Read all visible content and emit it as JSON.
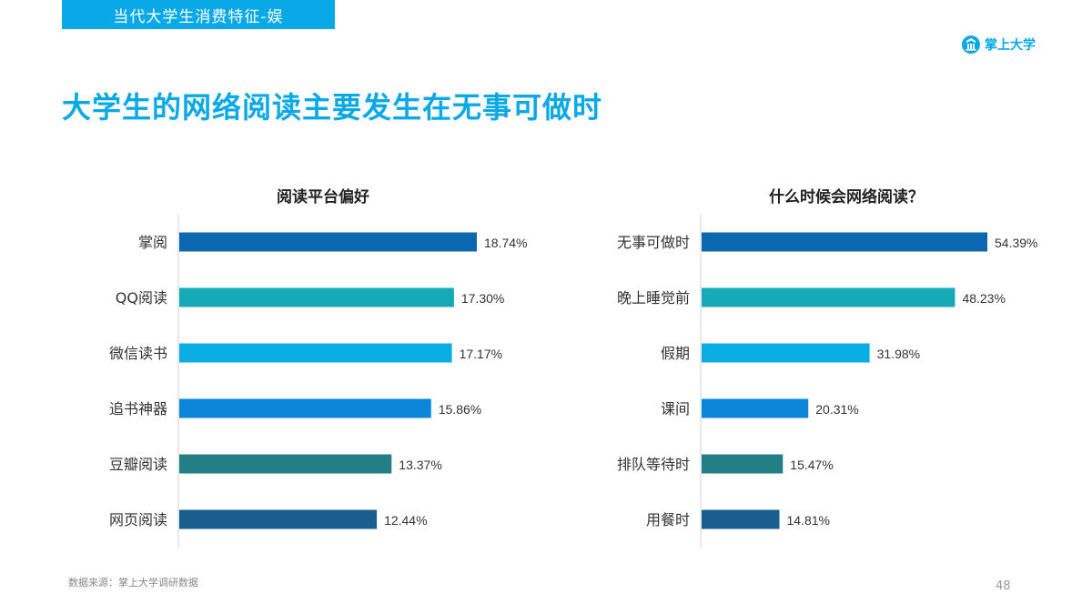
{
  "header": {
    "section_tag": "当代大学生消费特征-娱",
    "brand": "掌上大学",
    "title": "大学生的网络阅读主要发生在无事可做时"
  },
  "colors": {
    "accent": "#09a8e6",
    "bar_colors": [
      "#0a67b0",
      "#16a9b8",
      "#0aaee3",
      "#0b86db",
      "#227f85",
      "#1a5e8f"
    ]
  },
  "chart_data": [
    {
      "type": "bar",
      "orientation": "horizontal",
      "title": "阅读平台偏好",
      "categories": [
        "掌阅",
        "QQ阅读",
        "微信读书",
        "追书神器",
        "豆瓣阅读",
        "网页阅读"
      ],
      "values": [
        18.74,
        17.3,
        17.17,
        15.86,
        13.37,
        12.44
      ],
      "value_labels": [
        "18.74%",
        "17.30%",
        "17.17%",
        "15.86%",
        "13.37%",
        "12.44%"
      ],
      "unit": "%",
      "xlim": [
        0,
        20
      ]
    },
    {
      "type": "bar",
      "orientation": "horizontal",
      "title": "什么时候会网络阅读？",
      "categories": [
        "无事可做时",
        "晚上睡觉前",
        "假期",
        "课间",
        "排队等待时",
        "用餐时"
      ],
      "values": [
        54.39,
        48.23,
        31.98,
        20.31,
        15.47,
        14.81
      ],
      "value_labels": [
        "54.39%",
        "48.23%",
        "31.98%",
        "20.31%",
        "15.47%",
        "14.81%"
      ],
      "unit": "%",
      "xlim": [
        0,
        60
      ]
    }
  ],
  "footer": {
    "source": "数据来源：掌上大学调研数据",
    "page_number": "48"
  }
}
